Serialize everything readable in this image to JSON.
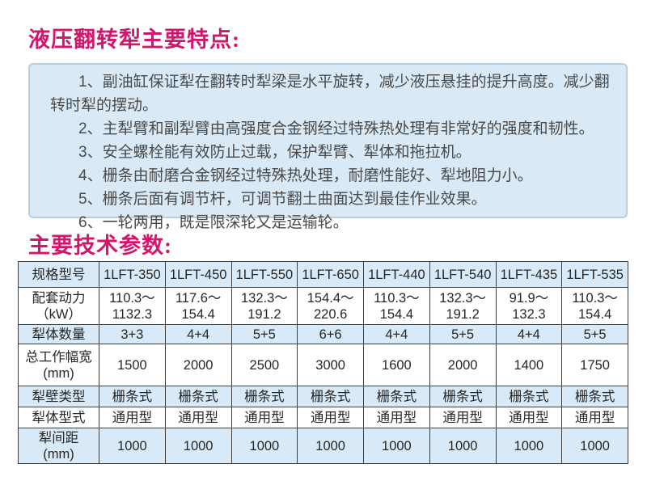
{
  "titles": {
    "features": "液压翻转犁主要特点:",
    "params": "主要技术参数:"
  },
  "features": {
    "items": [
      "1、副油缸保证犁在翻转时犁梁是水平旋转，减少液压悬挂的提升高度。减少翻转时犁的摆动。",
      "2、主犁臂和副犁臂由高强度合金钢经过特殊热处理有非常好的强度和韧性。",
      "3、安全螺栓能有效防止过载，保护犁臂、犁体和拖拉机。",
      "4、栅条由耐磨合金钢经过特殊热处理，耐磨性能好、犁地阻力小。",
      "5、栅条后面有调节杆，可调节翻土曲面达到最佳作业效果。",
      "6、一轮两用，既是限深轮又是运输轮。"
    ]
  },
  "spec_table": {
    "rows": [
      {
        "label": "规格型号",
        "values": [
          "1LFT-350",
          "1LFT-450",
          "1LFT-550",
          "1LFT-650",
          "1LFT-440",
          "1LFT-540",
          "1LFT-435",
          "1LFT-535"
        ]
      },
      {
        "label": "配套动力\n（kW）",
        "values": [
          "110.3～\n1132.3",
          "117.6～\n154.4",
          "132.3～\n191.2",
          "154.4～\n220.6",
          "110.3～\n154.4",
          "132.3～\n191.2",
          "91.9～\n132.3",
          "110.3～\n154.4"
        ]
      },
      {
        "label": "犁体数量",
        "values": [
          "3+3",
          "4+4",
          "5+5",
          "6+6",
          "4+4",
          "5+5",
          "4+4",
          "5+5"
        ]
      },
      {
        "label": "总工作幅宽(mm)",
        "values": [
          "1500",
          "2000",
          "2500",
          "3000",
          "1600",
          "2000",
          "1400",
          "1750"
        ]
      },
      {
        "label": "犁壁类型",
        "values": [
          "栅条式",
          "栅条式",
          "栅条式",
          "栅条式",
          "栅条式",
          "栅条式",
          "栅条式",
          "栅条式"
        ]
      },
      {
        "label": "犁体型式",
        "values": [
          "通用型",
          "通用型",
          "通用型",
          "通用型",
          "通用型",
          "通用型",
          "通用型",
          "通用型"
        ]
      },
      {
        "label": "犁间距\n(mm)",
        "values": [
          "1000",
          "1000",
          "1000",
          "1000",
          "1000",
          "1000",
          "1000",
          "1000"
        ]
      }
    ]
  },
  "colors": {
    "accent_pink": "#d2166b",
    "box_background": "#d9e9f6",
    "box_border": "#b8cede",
    "table_alt_row": "#d8eaf8",
    "table_border": "#3f3f3f",
    "body_text": "#4a4a4a"
  }
}
